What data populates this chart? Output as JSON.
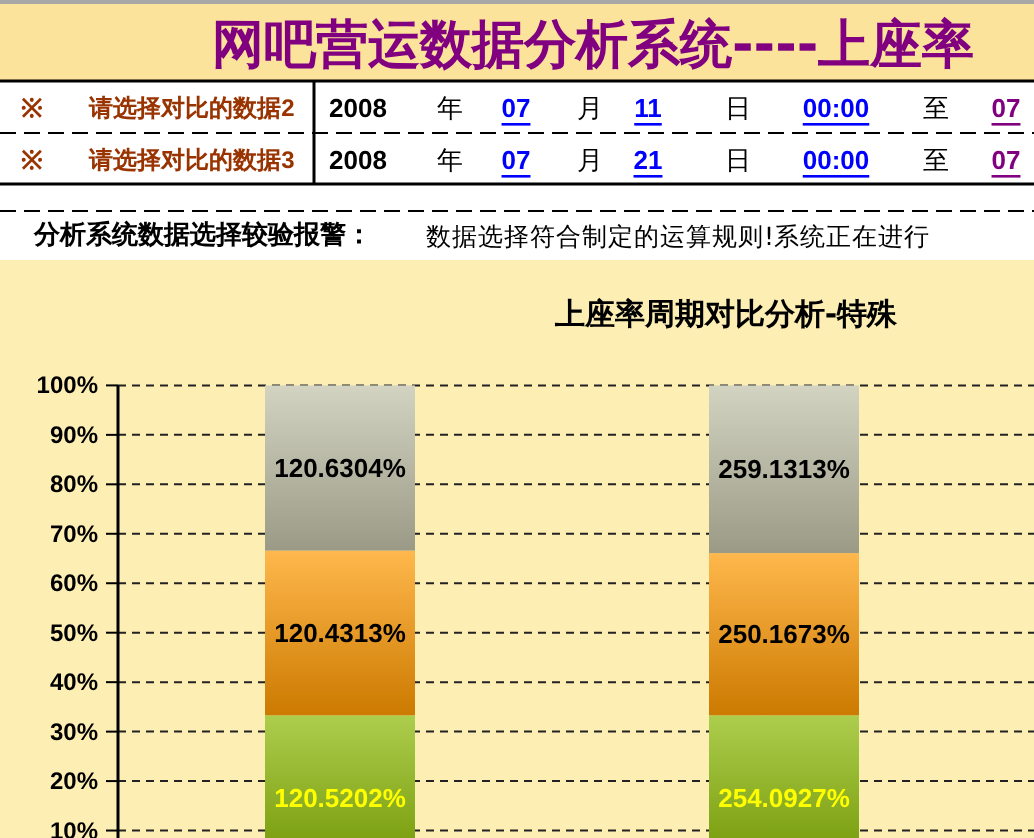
{
  "chart_data": {
    "type": "bar",
    "title": "网吧营运数据分析系统----上座率",
    "subtitle": "上座率周期对比分析-特殊",
    "categories": [
      null,
      null
    ],
    "stacked": true,
    "series": [
      {
        "color": "#8ab800",
        "values": [
          33.3,
          33.3
        ]
      },
      {
        "color": "#ff9900",
        "values": [
          33.3,
          32.8
        ]
      },
      {
        "color": "#c0c0a8",
        "values": [
          33.4,
          33.9
        ]
      }
    ],
    "ylim": [
      0,
      100
    ],
    "yticks": [
      {
        "value": 10,
        "label": "10%"
      },
      {
        "value": 20,
        "label": "20%"
      },
      {
        "value": 30,
        "label": "30%"
      },
      {
        "value": 40,
        "label": "40%"
      },
      {
        "value": 50,
        "label": "50%"
      },
      {
        "value": 60,
        "label": "60%"
      },
      {
        "value": 70,
        "label": "70%"
      },
      {
        "value": 80,
        "label": "80%"
      },
      {
        "value": 90,
        "label": "90%"
      },
      {
        "value": 100,
        "label": "100%"
      }
    ],
    "grid": "y",
    "tick_labels": "y",
    "annotations": [
      "※",
      "请选择对比的数据2",
      "2008",
      "年",
      "07",
      "月",
      "11",
      "日",
      "00:00",
      "至",
      "07",
      "※",
      "请选择对比的数据3",
      "2008",
      "年",
      "07",
      "月",
      "21",
      "日",
      "00:00",
      "至",
      "07",
      "分析系统数据选择较验报警：",
      "数据选择符合制定的运算规则!系统正在进行",
      "120.5202%",
      "120.4313%",
      "120.6304%",
      "254.0927%",
      "250.1673%",
      "259.1313%"
    ]
  }
}
